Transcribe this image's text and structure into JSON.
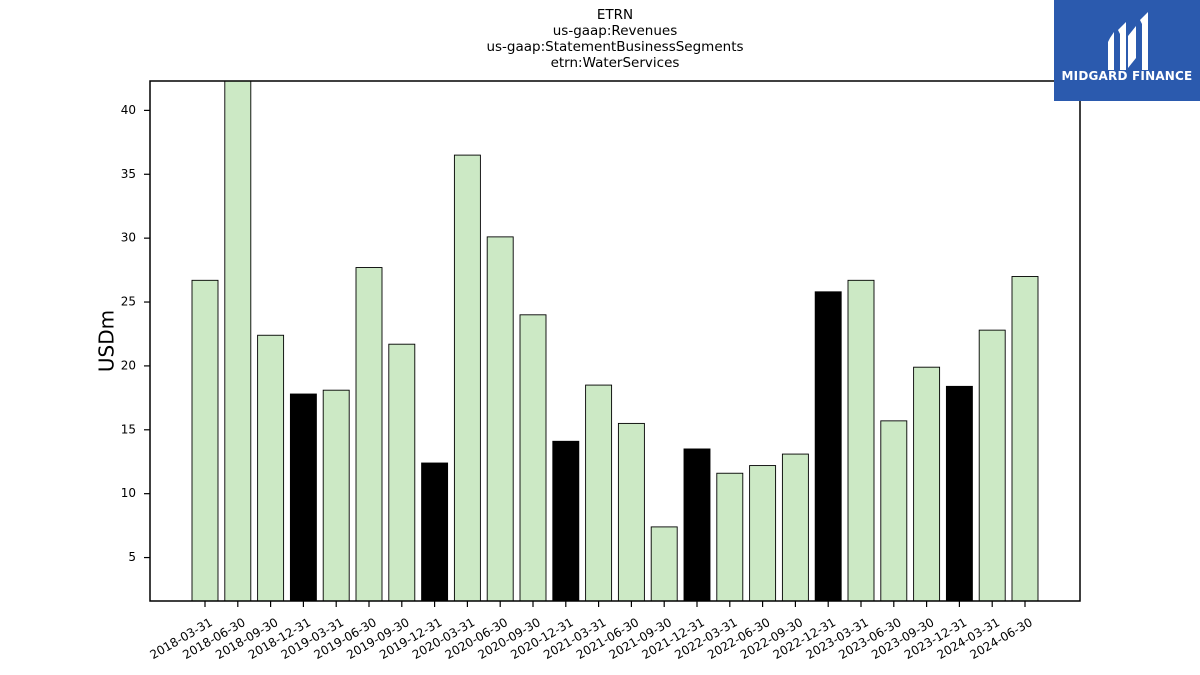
{
  "chart_data": {
    "type": "bar",
    "title_lines": [
      "ETRN",
      "us-gaap:Revenues",
      "us-gaap:StatementBusinessSegments",
      "etrn:WaterServices"
    ],
    "xlabel": "",
    "ylabel": "USDm",
    "ylim": [
      1.6,
      42.3
    ],
    "yticks": [
      5,
      10,
      15,
      20,
      25,
      30,
      35,
      40
    ],
    "grid": false,
    "categories": [
      "2018-03-31",
      "2018-06-30",
      "2018-09-30",
      "2018-12-31",
      "2019-03-31",
      "2019-06-30",
      "2019-09-30",
      "2019-12-31",
      "2020-03-31",
      "2020-06-30",
      "2020-09-30",
      "2020-12-31",
      "2021-03-31",
      "2021-06-30",
      "2021-09-30",
      "2021-12-31",
      "2022-03-31",
      "2022-06-30",
      "2022-09-30",
      "2022-12-31",
      "2023-03-31",
      "2023-06-30",
      "2023-09-30",
      "2023-12-31",
      "2024-03-31",
      "2024-06-30"
    ],
    "values": [
      26.7,
      42.3,
      22.4,
      17.8,
      18.1,
      27.7,
      21.7,
      12.4,
      36.5,
      30.1,
      24.0,
      14.1,
      18.5,
      15.5,
      7.4,
      13.5,
      11.6,
      12.2,
      13.1,
      25.8,
      26.7,
      15.7,
      19.9,
      18.4,
      22.8,
      27.0
    ],
    "colors": {
      "quarter": "#cce9c5",
      "year_end": "#000000",
      "edge": "#000000"
    },
    "year_end_categories": [
      "2018-12-31",
      "2019-12-31",
      "2020-12-31",
      "2021-12-31",
      "2022-12-31",
      "2023-12-31"
    ]
  },
  "logo": {
    "text": "MIDGARD FINANCE",
    "background": "#2b5aae"
  }
}
